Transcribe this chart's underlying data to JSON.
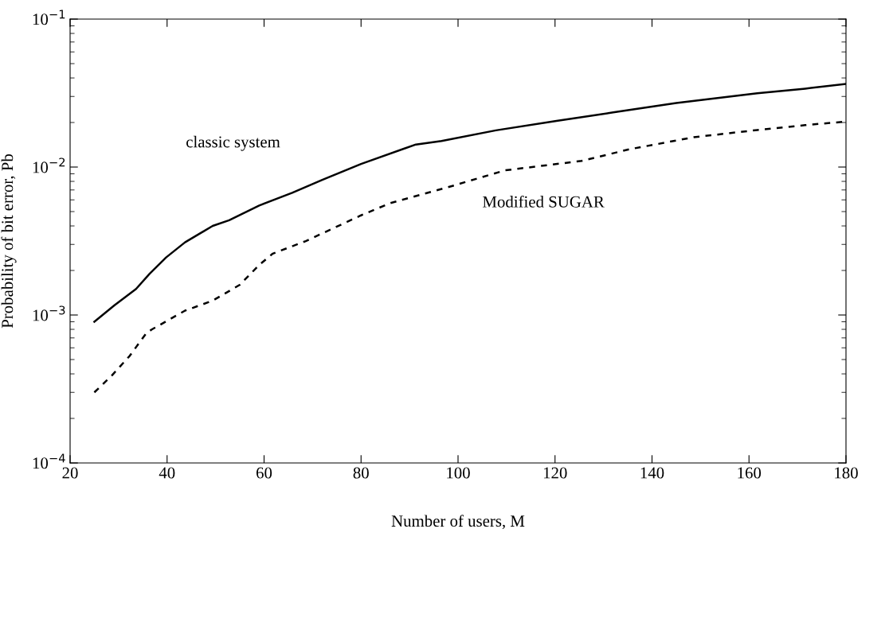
{
  "chart_data": {
    "type": "line",
    "xlabel": "Number of users, M",
    "ylabel": "Probability of bit error, Pb",
    "log": "y",
    "grid": false,
    "legend": false,
    "marker": "none",
    "xlim": [
      20,
      180
    ],
    "xticks": [
      20,
      40,
      60,
      80,
      100,
      120,
      140,
      160,
      180
    ],
    "ylim": [
      0.0001,
      0.1
    ],
    "yticks": [
      {
        "value": 0.0001,
        "label": "10$^{−4}$"
      },
      {
        "value": 0.001,
        "label": "10$^{−3}$"
      },
      {
        "value": 0.01,
        "label": "10$^{−2}$"
      },
      {
        "value": 0.1,
        "label": "10$^{−1}$"
      }
    ],
    "series": [
      {
        "name": "classic system",
        "color": "#000000",
        "line_style": "solid",
        "x": [
          25,
          29.1,
          33.6,
          36.4,
          39.8,
          43.7,
          49.4,
          52.8,
          59,
          65.8,
          72,
          80,
          91.3,
          96.6,
          107.8,
          120.3,
          132,
          145,
          161.7,
          171.6,
          180
        ],
        "values": [
          0.0009,
          0.00116,
          0.0015,
          0.0019,
          0.00245,
          0.0031,
          0.004,
          0.00437,
          0.0055,
          0.0067,
          0.0082,
          0.0105,
          0.0142,
          0.015,
          0.0177,
          0.0205,
          0.0234,
          0.0271,
          0.0315,
          0.0339,
          0.0365
        ]
      },
      {
        "name": "Modified SUGAR",
        "color": "#000000",
        "line_style": "dashed",
        "x": [
          25,
          28.6,
          32.3,
          35.8,
          36.9,
          43.7,
          49.4,
          55,
          59,
          61.8,
          68.6,
          79.9,
          86,
          97.9,
          109.7,
          125.5,
          135.4,
          148.6,
          161.7,
          171.6,
          180
        ],
        "values": [
          0.0003,
          0.00039,
          0.00053,
          0.00076,
          0.0008,
          0.00107,
          0.00125,
          0.0016,
          0.00218,
          0.0026,
          0.00316,
          0.0047,
          0.0057,
          0.0073,
          0.0095,
          0.011,
          0.0132,
          0.0159,
          0.0178,
          0.0192,
          0.0203
        ]
      }
    ]
  }
}
